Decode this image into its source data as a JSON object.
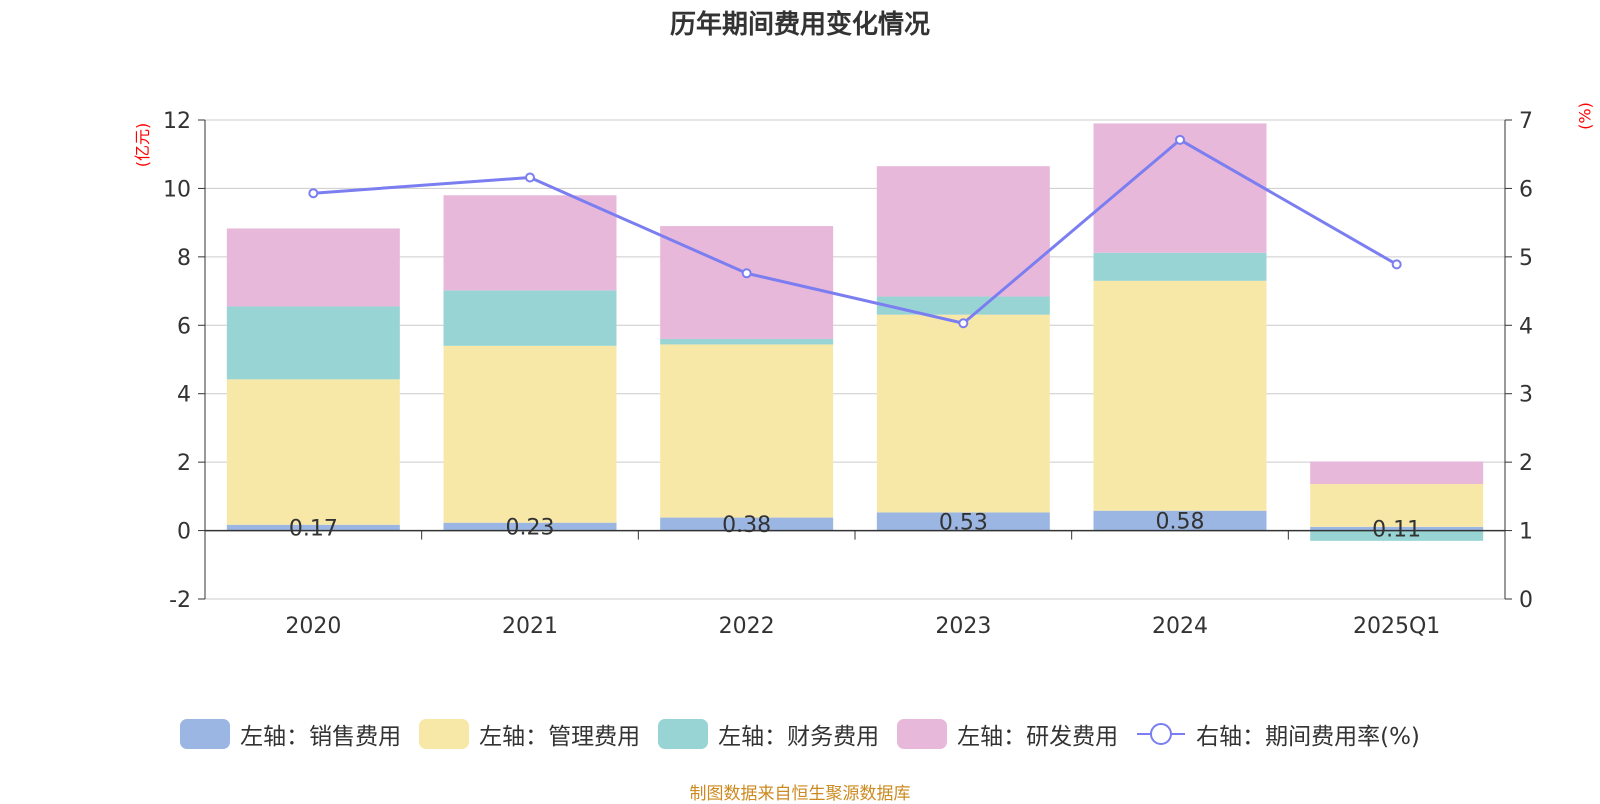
{
  "title": "历年期间费用变化情况",
  "source": "制图数据来自恒生聚源数据库",
  "colors": {
    "sales": "#9bb6e2",
    "management": "#f8e8a8",
    "finance": "#98d4d4",
    "rd": "#e8b8da",
    "rate_line": "#7b7ef0"
  },
  "chart_data": {
    "type": "bar",
    "stacked": true,
    "categories": [
      "2020",
      "2021",
      "2022",
      "2023",
      "2024",
      "2025Q1"
    ],
    "left_axis": {
      "unit": "(亿元)",
      "ylim": [
        -2,
        12
      ],
      "ticks": [
        -2,
        0,
        2,
        4,
        6,
        8,
        10,
        12
      ]
    },
    "right_axis": {
      "unit": "(%)",
      "ylim": [
        0,
        7
      ],
      "ticks": [
        0,
        1,
        2,
        3,
        4,
        5,
        6,
        7
      ]
    },
    "grid": true,
    "legend_position": "bottom",
    "series": [
      {
        "name": "左轴：销售费用",
        "key": "sales",
        "axis": "left",
        "type": "bar",
        "values": [
          0.17,
          0.23,
          0.38,
          0.53,
          0.58,
          0.11
        ],
        "labels": [
          "0.17",
          "0.23",
          "0.38",
          "0.53",
          "0.58",
          "0.11"
        ]
      },
      {
        "name": "左轴：管理费用",
        "key": "management",
        "axis": "left",
        "type": "bar",
        "values": [
          4.25,
          5.17,
          5.06,
          5.78,
          6.72,
          1.25
        ]
      },
      {
        "name": "左轴：财务费用",
        "key": "finance",
        "axis": "left",
        "type": "bar",
        "values": [
          2.13,
          1.62,
          0.16,
          0.53,
          0.82,
          -0.3
        ]
      },
      {
        "name": "左轴：研发费用",
        "key": "rd",
        "axis": "left",
        "type": "bar",
        "values": [
          2.28,
          2.78,
          3.3,
          3.81,
          3.78,
          0.66
        ]
      },
      {
        "name": "右轴：期间费用率(%)",
        "key": "rate_line",
        "axis": "right",
        "type": "line",
        "values": [
          5.93,
          6.16,
          4.76,
          4.03,
          6.71,
          4.89
        ]
      }
    ]
  }
}
